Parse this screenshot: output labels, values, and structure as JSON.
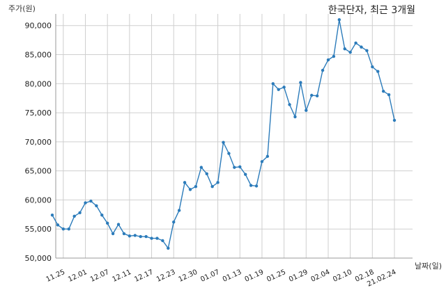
{
  "chart_data": {
    "type": "line",
    "title": "한국단자, 최근 3개월",
    "ylabel": "주가(원)",
    "xlabel": "날짜(일)",
    "ylim": [
      50000,
      92000
    ],
    "yticks": [
      50000,
      55000,
      60000,
      65000,
      70000,
      75000,
      80000,
      85000,
      90000
    ],
    "ytick_labels": [
      "50,000",
      "55,000",
      "60,000",
      "65,000",
      "70,000",
      "75,000",
      "80,000",
      "85,000",
      "90,000"
    ],
    "xtick_labels": [
      "11.25",
      "12.01",
      "12.07",
      "12.11",
      "12.17",
      "12.23",
      "12.30",
      "01.07",
      "01.13",
      "01.19",
      "01.25",
      "01.29",
      "02.04",
      "02.10",
      "02.18",
      "21.02.24"
    ],
    "xtick_indices": [
      2,
      6,
      10,
      14,
      18,
      22,
      26,
      30,
      34,
      38,
      42,
      46,
      50,
      54,
      58,
      62
    ],
    "grid": true,
    "color": "#2b7bba",
    "values": [
      57400,
      55700,
      55000,
      55000,
      57200,
      57800,
      59500,
      59800,
      59000,
      57400,
      56000,
      54200,
      55800,
      54200,
      53800,
      53900,
      53700,
      53700,
      53400,
      53400,
      53000,
      51700,
      56200,
      58200,
      63000,
      61800,
      62300,
      65600,
      64500,
      62300,
      63000,
      69900,
      68000,
      65600,
      65700,
      64400,
      62500,
      62400,
      66600,
      67500,
      80000,
      79000,
      79400,
      76400,
      74300,
      80200,
      75400,
      78000,
      77900,
      82300,
      84100,
      84700,
      91000,
      86000,
      85400,
      87000,
      86300,
      85700,
      82900,
      82100,
      78700,
      78100,
      73700
    ]
  }
}
